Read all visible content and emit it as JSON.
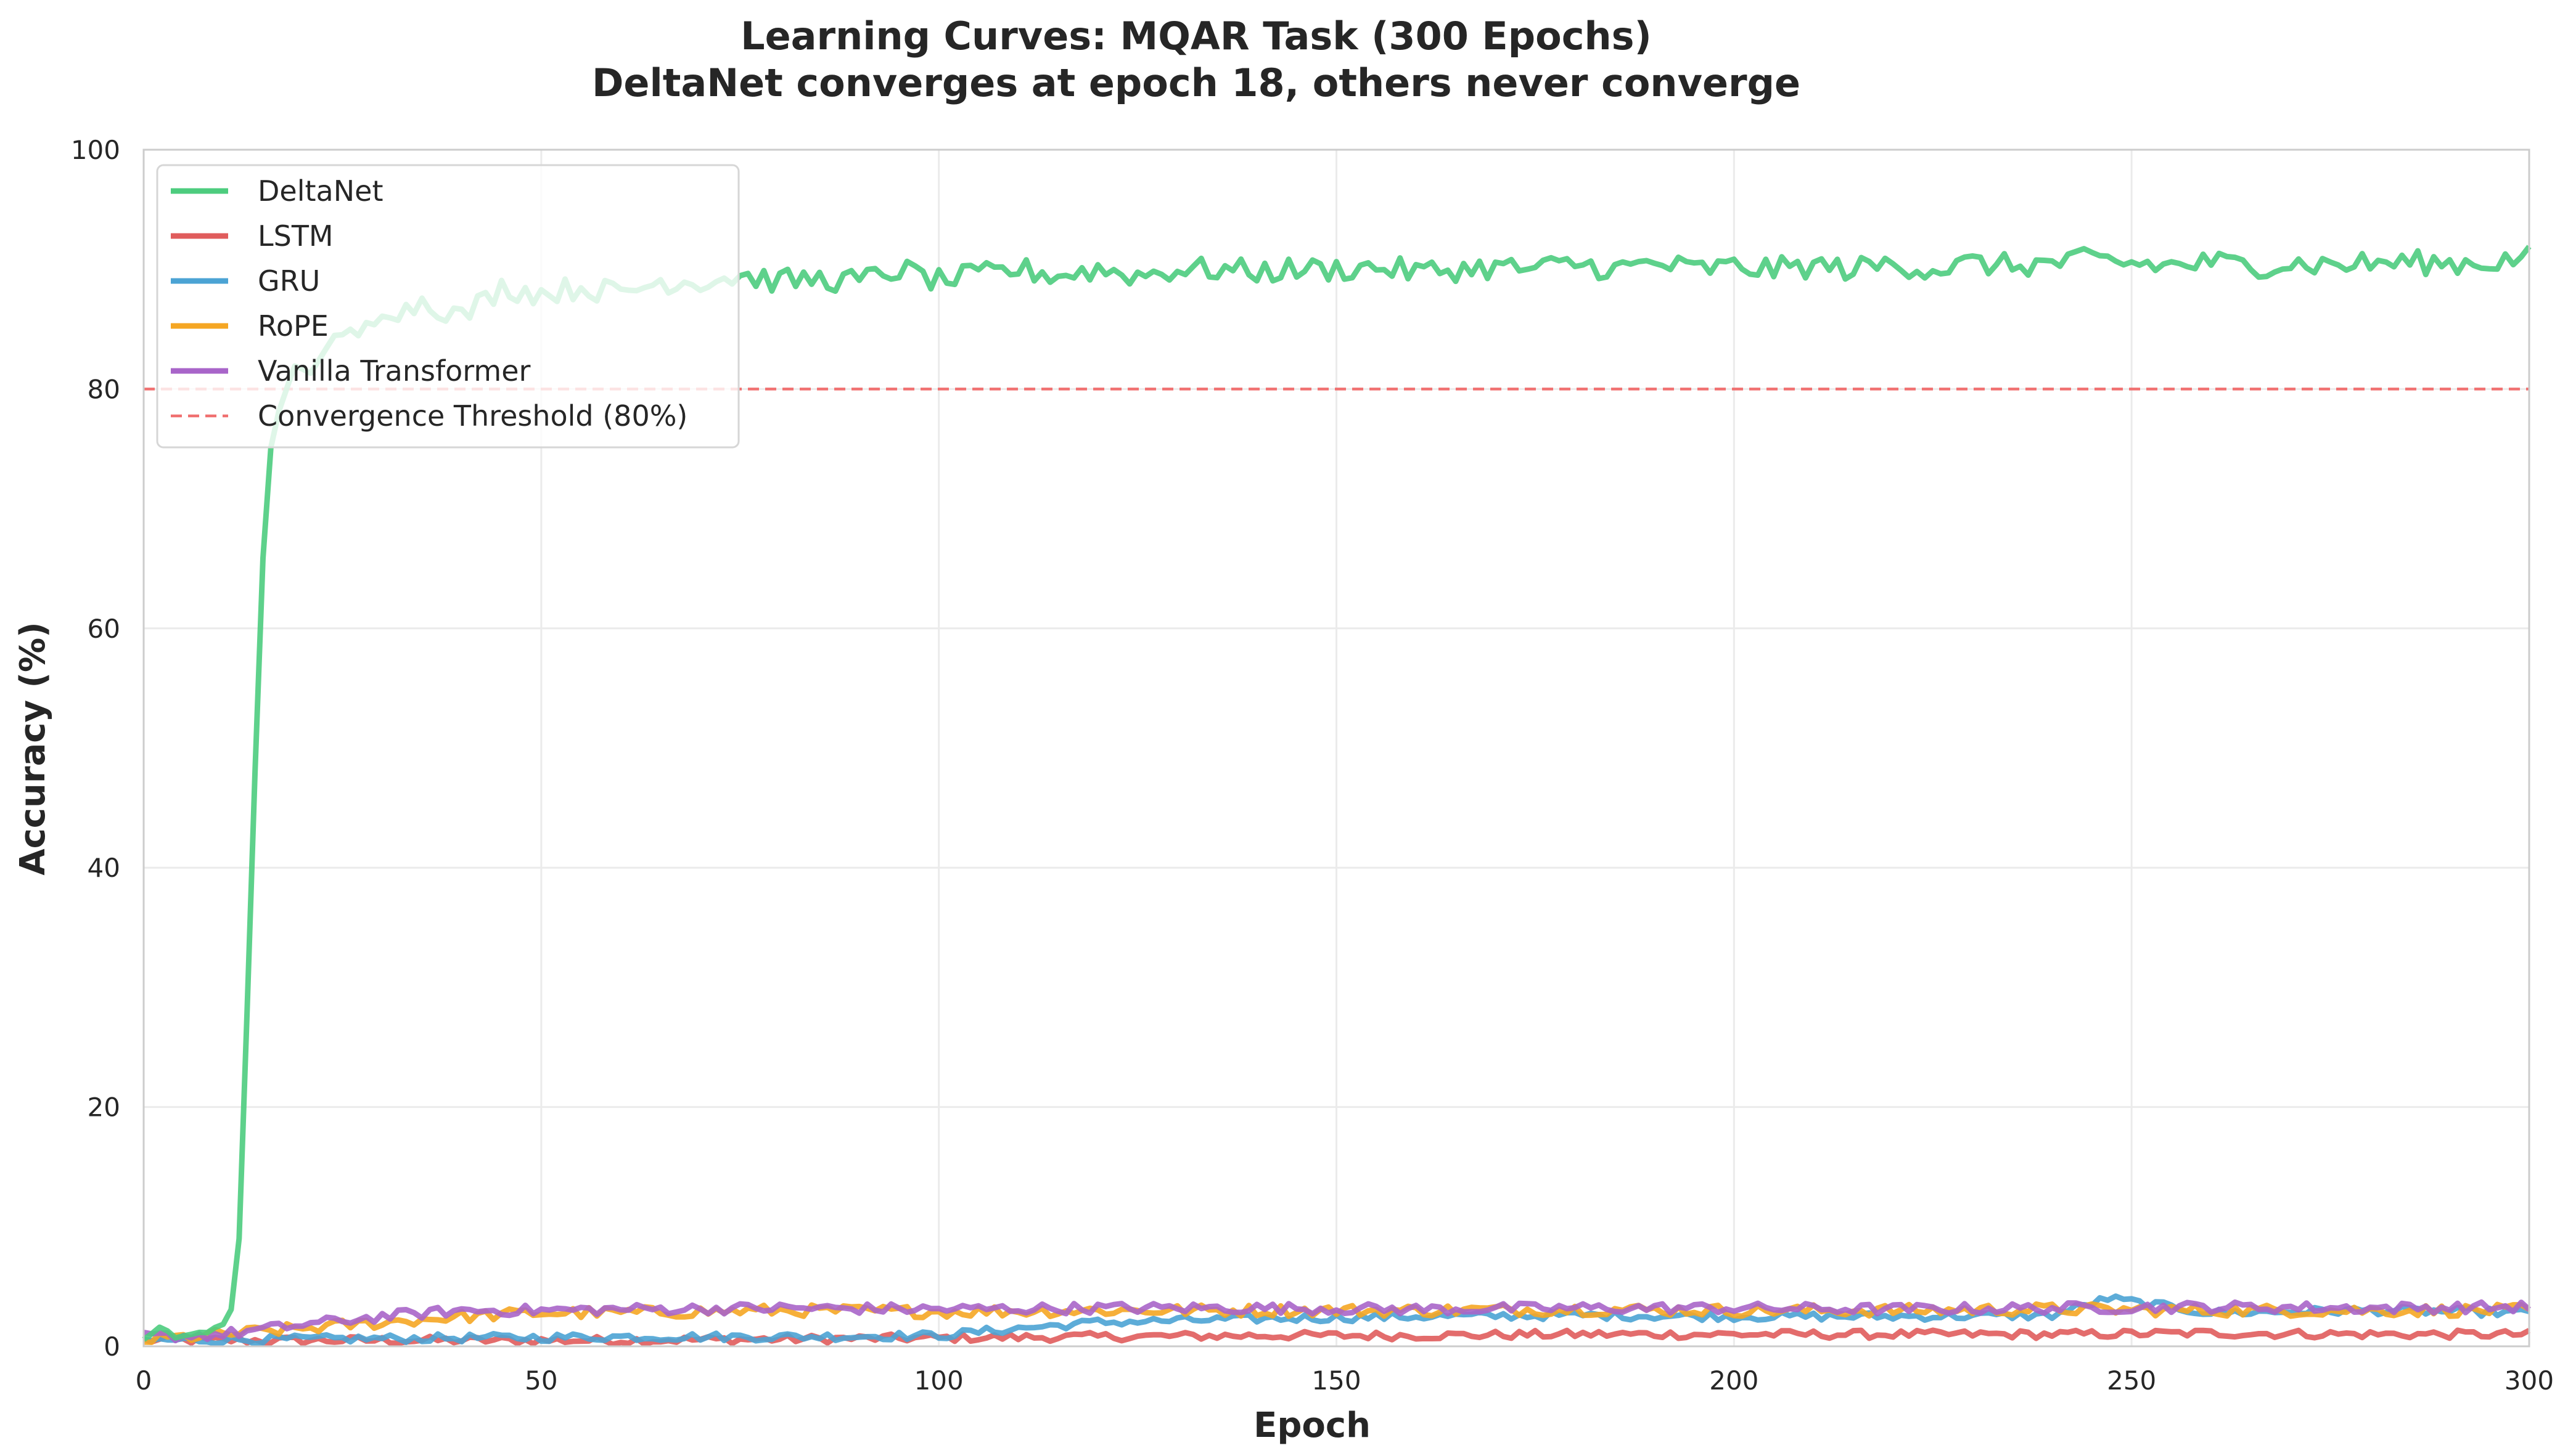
{
  "chart_data": {
    "type": "line",
    "title": "Learning Curves: MQAR Task (300 Epochs)",
    "subtitle": "DeltaNet converges at epoch 18, others never converge",
    "xlabel": "Epoch",
    "ylabel": "Accuracy (%)",
    "xlim": [
      0,
      300
    ],
    "ylim": [
      0,
      100
    ],
    "xticks": [
      0,
      50,
      100,
      150,
      200,
      250,
      300
    ],
    "yticks": [
      0,
      20,
      40,
      60,
      80,
      100
    ],
    "grid": true,
    "legend_position": "top-left",
    "threshold": {
      "name": "Convergence Threshold (80%)",
      "value": 80,
      "color": "#f07070",
      "style": "dashed"
    },
    "series": [
      {
        "name": "DeltaNet",
        "color": "#4dcc7e",
        "points": [
          [
            0,
            0.5
          ],
          [
            2,
            1.5
          ],
          [
            4,
            0.8
          ],
          [
            6,
            1.0
          ],
          [
            8,
            1.2
          ],
          [
            10,
            1.8
          ],
          [
            11,
            3
          ],
          [
            12,
            9
          ],
          [
            13,
            28
          ],
          [
            14,
            48
          ],
          [
            15,
            66
          ],
          [
            16,
            75
          ],
          [
            17,
            78
          ],
          [
            18,
            80
          ],
          [
            19,
            82
          ],
          [
            20,
            81
          ],
          [
            22,
            83
          ],
          [
            25,
            84
          ],
          [
            28,
            85
          ],
          [
            30,
            87
          ],
          [
            33,
            86.5
          ],
          [
            35,
            87.5
          ],
          [
            40,
            86
          ],
          [
            45,
            88.5
          ],
          [
            50,
            88
          ],
          [
            55,
            88.5
          ],
          [
            60,
            88
          ],
          [
            65,
            89
          ],
          [
            70,
            89
          ],
          [
            75,
            89.5
          ],
          [
            80,
            89
          ],
          [
            85,
            89.2
          ],
          [
            90,
            89
          ],
          [
            95,
            90
          ],
          [
            100,
            89
          ],
          [
            105,
            89.5
          ],
          [
            110,
            90
          ],
          [
            115,
            89.5
          ],
          [
            120,
            90
          ],
          [
            125,
            89.5
          ],
          [
            130,
            90
          ],
          [
            135,
            90
          ],
          [
            140,
            89.8
          ],
          [
            145,
            90
          ],
          [
            150,
            90
          ],
          [
            155,
            90.2
          ],
          [
            160,
            89.8
          ],
          [
            165,
            90
          ],
          [
            170,
            90.2
          ],
          [
            175,
            90
          ],
          [
            180,
            90.5
          ],
          [
            185,
            90
          ],
          [
            190,
            90.5
          ],
          [
            195,
            90
          ],
          [
            200,
            90.2
          ],
          [
            205,
            90
          ],
          [
            210,
            90.3
          ],
          [
            215,
            90
          ],
          [
            220,
            90.5
          ],
          [
            225,
            90
          ],
          [
            230,
            90.5
          ],
          [
            235,
            90.3
          ],
          [
            240,
            90.5
          ],
          [
            245,
            90.8
          ],
          [
            250,
            90.5
          ],
          [
            255,
            90.3
          ],
          [
            260,
            90.6
          ],
          [
            265,
            90.3
          ],
          [
            270,
            90.5
          ],
          [
            275,
            90.4
          ],
          [
            280,
            90.5
          ],
          [
            285,
            90.6
          ],
          [
            290,
            90.5
          ],
          [
            295,
            90.6
          ],
          [
            300,
            91
          ]
        ]
      },
      {
        "name": "LSTM",
        "color": "#e05c5c",
        "points": [
          [
            0,
            0.5
          ],
          [
            20,
            0.5
          ],
          [
            40,
            0.5
          ],
          [
            60,
            0.5
          ],
          [
            80,
            0.6
          ],
          [
            100,
            0.7
          ],
          [
            120,
            0.8
          ],
          [
            140,
            0.9
          ],
          [
            160,
            0.9
          ],
          [
            180,
            1.0
          ],
          [
            200,
            1.0
          ],
          [
            220,
            1.0
          ],
          [
            240,
            1.0
          ],
          [
            260,
            1.1
          ],
          [
            280,
            1.0
          ],
          [
            300,
            1.0
          ]
        ]
      },
      {
        "name": "GRU",
        "color": "#4ba3d4",
        "points": [
          [
            0,
            0.5
          ],
          [
            20,
            0.6
          ],
          [
            40,
            0.7
          ],
          [
            60,
            0.8
          ],
          [
            80,
            0.8
          ],
          [
            100,
            0.9
          ],
          [
            110,
            1.5
          ],
          [
            120,
            2.0
          ],
          [
            140,
            2.3
          ],
          [
            160,
            2.5
          ],
          [
            180,
            2.6
          ],
          [
            200,
            2.5
          ],
          [
            220,
            2.5
          ],
          [
            240,
            2.6
          ],
          [
            247,
            4.0
          ],
          [
            260,
            2.8
          ],
          [
            280,
            3.0
          ],
          [
            300,
            2.8
          ]
        ]
      },
      {
        "name": "RoPE",
        "color": "#f5a623",
        "points": [
          [
            0,
            0.5
          ],
          [
            10,
            1.0
          ],
          [
            20,
            1.5
          ],
          [
            30,
            2.0
          ],
          [
            40,
            2.5
          ],
          [
            50,
            2.8
          ],
          [
            60,
            2.8
          ],
          [
            80,
            3.0
          ],
          [
            100,
            2.9
          ],
          [
            120,
            3.0
          ],
          [
            140,
            3.0
          ],
          [
            160,
            3.0
          ],
          [
            180,
            3.1
          ],
          [
            200,
            3.0
          ],
          [
            220,
            3.0
          ],
          [
            240,
            3.1
          ],
          [
            260,
            3.0
          ],
          [
            280,
            3.0
          ],
          [
            300,
            3.0
          ]
        ]
      },
      {
        "name": "Vanilla Transformer",
        "color": "#a865c9",
        "points": [
          [
            0,
            0.8
          ],
          [
            10,
            1.0
          ],
          [
            20,
            1.8
          ],
          [
            30,
            2.5
          ],
          [
            40,
            3.0
          ],
          [
            50,
            3.0
          ],
          [
            60,
            3.1
          ],
          [
            80,
            3.2
          ],
          [
            100,
            3.1
          ],
          [
            120,
            3.2
          ],
          [
            140,
            3.2
          ],
          [
            160,
            3.1
          ],
          [
            180,
            3.2
          ],
          [
            200,
            3.2
          ],
          [
            220,
            3.1
          ],
          [
            240,
            3.2
          ],
          [
            260,
            3.3
          ],
          [
            280,
            3.2
          ],
          [
            300,
            3.3
          ]
        ]
      }
    ]
  }
}
